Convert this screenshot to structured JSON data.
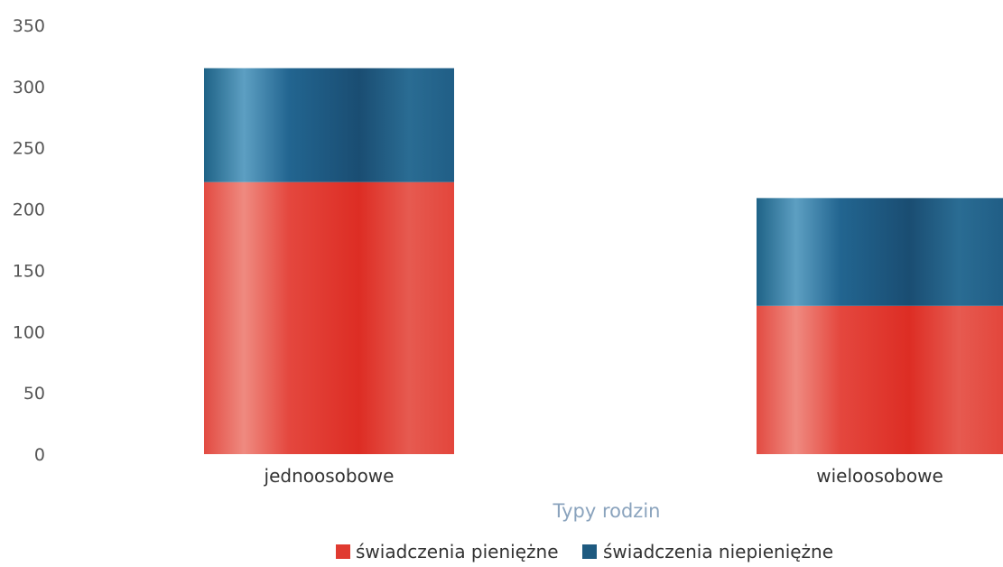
{
  "chart_data": {
    "type": "bar",
    "stacked": true,
    "title": "",
    "xlabel": "Typy rodzin",
    "ylabel": "",
    "ylim": [
      0,
      350
    ],
    "yticks": [
      0,
      50,
      100,
      150,
      200,
      250,
      300,
      350
    ],
    "categories": [
      "jednoosobowe",
      "wieloosobowe"
    ],
    "series": [
      {
        "name": "świadczenia pieniężne",
        "values": [
          222,
          121
        ],
        "color": "#e03a30"
      },
      {
        "name": "świadczenia niepieniężne",
        "values": [
          93,
          88
        ],
        "color": "#1e5a80"
      }
    ],
    "grid": false,
    "legend": "bottom-center"
  }
}
